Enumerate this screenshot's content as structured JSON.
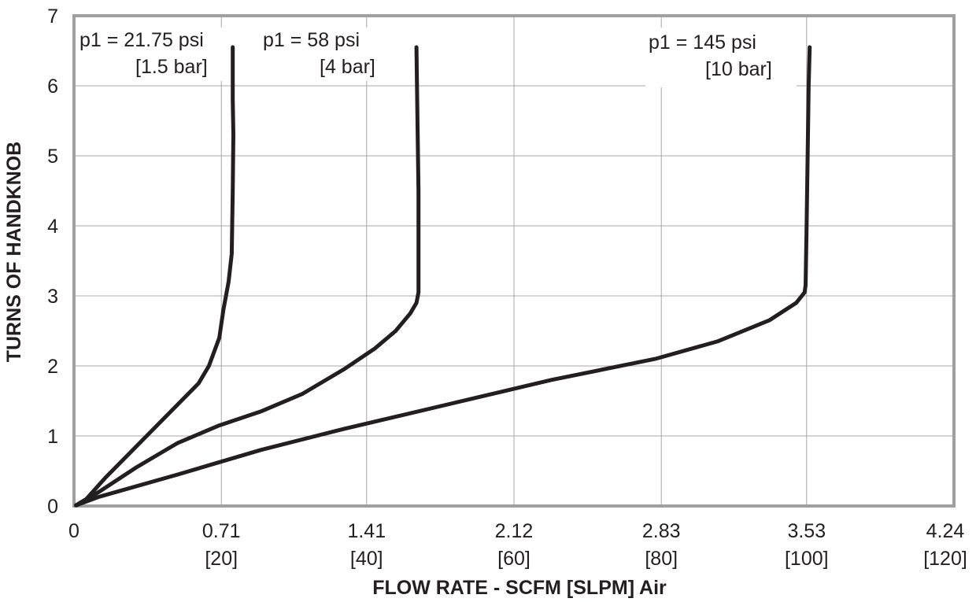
{
  "chart_data": {
    "type": "line",
    "xlabel": "FLOW RATE - SCFM [SLPM] Air",
    "ylabel": "TURNS OF HANDKNOB",
    "xlim": [
      0,
      4.24
    ],
    "ylim": [
      0,
      7
    ],
    "grid": true,
    "x_ticks": [
      {
        "value": 0,
        "label": "0",
        "sublabel": ""
      },
      {
        "value": 0.71,
        "label": "0.71",
        "sublabel": "[20]"
      },
      {
        "value": 1.41,
        "label": "1.41",
        "sublabel": "[40]"
      },
      {
        "value": 2.12,
        "label": "2.12",
        "sublabel": "[60]"
      },
      {
        "value": 2.83,
        "label": "2.83",
        "sublabel": "[80]"
      },
      {
        "value": 3.53,
        "label": "3.53",
        "sublabel": "[100]"
      },
      {
        "value": 4.24,
        "label": "4.24",
        "sublabel": "[120]"
      }
    ],
    "y_ticks": [
      0,
      1,
      2,
      3,
      4,
      5,
      6,
      7
    ],
    "series": [
      {
        "name": "p1 = 21.75 psi [1.5 bar]",
        "label_line1": "p1 =  21.75 psi",
        "label_line2": "[1.5 bar]",
        "points": [
          [
            0.01,
            0.01
          ],
          [
            0.06,
            0.1
          ],
          [
            0.15,
            0.4
          ],
          [
            0.3,
            0.85
          ],
          [
            0.45,
            1.3
          ],
          [
            0.55,
            1.6
          ],
          [
            0.6,
            1.75
          ],
          [
            0.65,
            2.0
          ],
          [
            0.7,
            2.4
          ],
          [
            0.72,
            2.8
          ],
          [
            0.745,
            3.2
          ],
          [
            0.76,
            3.6
          ],
          [
            0.765,
            4.5
          ],
          [
            0.768,
            5.3
          ],
          [
            0.765,
            5.8
          ],
          [
            0.765,
            6.55
          ]
        ]
      },
      {
        "name": "p1 = 58 psi [4 bar]",
        "label_line1": "p1 =  58 psi",
        "label_line2": "[4 bar]",
        "points": [
          [
            0.01,
            0.01
          ],
          [
            0.12,
            0.2
          ],
          [
            0.3,
            0.55
          ],
          [
            0.5,
            0.9
          ],
          [
            0.7,
            1.15
          ],
          [
            0.9,
            1.35
          ],
          [
            1.1,
            1.6
          ],
          [
            1.3,
            1.95
          ],
          [
            1.45,
            2.25
          ],
          [
            1.55,
            2.5
          ],
          [
            1.62,
            2.75
          ],
          [
            1.65,
            2.9
          ],
          [
            1.66,
            3.05
          ],
          [
            1.66,
            3.5
          ],
          [
            1.66,
            4.5
          ],
          [
            1.655,
            5.5
          ],
          [
            1.65,
            6.55
          ]
        ]
      },
      {
        "name": "p1 = 145 psi [10 bar]",
        "label_line1": "p1 =  145 psi",
        "label_line2": "[10 bar]",
        "points": [
          [
            0.01,
            0.01
          ],
          [
            0.12,
            0.13
          ],
          [
            0.5,
            0.45
          ],
          [
            0.9,
            0.8
          ],
          [
            1.3,
            1.1
          ],
          [
            1.8,
            1.45
          ],
          [
            2.3,
            1.8
          ],
          [
            2.8,
            2.1
          ],
          [
            3.1,
            2.35
          ],
          [
            3.35,
            2.65
          ],
          [
            3.48,
            2.9
          ],
          [
            3.52,
            3.05
          ],
          [
            3.525,
            3.15
          ],
          [
            3.53,
            4.0
          ],
          [
            3.535,
            5.0
          ],
          [
            3.54,
            6.0
          ],
          [
            3.545,
            6.55
          ]
        ]
      }
    ]
  }
}
